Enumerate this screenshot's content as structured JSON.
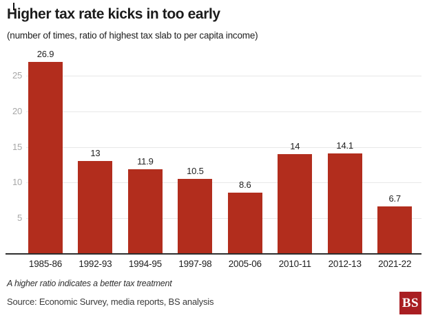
{
  "header": {
    "title": "Higher tax rate kicks in too early",
    "subtitle": "(number of times, ratio of highest tax slab to per capita income)"
  },
  "chart_data": {
    "type": "bar",
    "categories": [
      "1985-86",
      "1992-93",
      "1994-95",
      "1997-98",
      "2005-06",
      "2010-11",
      "2012-13",
      "2021-22"
    ],
    "values": [
      26.9,
      13,
      11.9,
      10.5,
      8.6,
      14,
      14.1,
      6.7
    ],
    "value_labels": [
      "26.9",
      "13",
      "11.9",
      "10.5",
      "8.6",
      "14",
      "14.1",
      "6.7"
    ],
    "title": "Higher tax rate kicks in too early",
    "subtitle": "(number of times, ratio of highest tax slab to per capita income)",
    "xlabel": "",
    "ylabel": "",
    "yticks": [
      5,
      10,
      15,
      20,
      25
    ],
    "ylim": [
      0,
      28
    ],
    "grid": true,
    "legend": false,
    "bar_color": "#b22d1d"
  },
  "footer": {
    "note": "A higher ratio indicates a better tax treatment",
    "source": "Source: Economic Survey, media reports, BS analysis",
    "logo_text": "BS"
  },
  "colors": {
    "bar": "#b22d1d",
    "logo_bg": "#a91e22",
    "grid": "#e7e7e7",
    "axis": "#2d2d2d",
    "tick_label": "#a7a7a7",
    "text": "#1c1c1c"
  }
}
